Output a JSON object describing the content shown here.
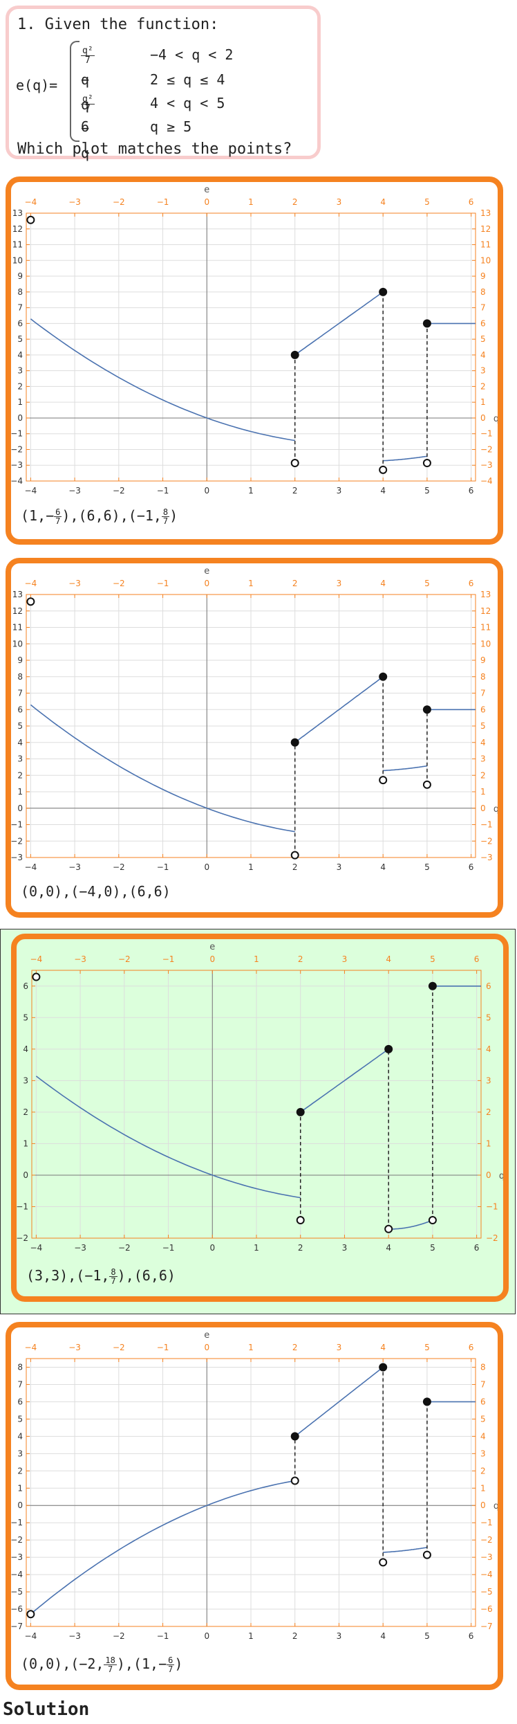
{
  "question": {
    "number_title": "1. Given the function:",
    "function_name": "e(q)=",
    "cases": [
      {
        "expr_num": "q²",
        "expr_den": "7",
        "expr_tail": " − q",
        "condition": "−4 < q < 2"
      },
      {
        "expr": "q",
        "condition": "2 ≤ q ≤ 4"
      },
      {
        "expr_num": "q²",
        "expr_den": "7",
        "expr_tail": " − q",
        "condition": "4 < q < 5"
      },
      {
        "expr": "6",
        "condition": "q ≥ 5"
      }
    ],
    "prompt": "Which plot matches the points?"
  },
  "colors": {
    "frame_orange": "#f58220",
    "question_border": "#f8cccc",
    "curve_blue": "#4a72b0",
    "correct_background": "#dcffdc"
  },
  "options": [
    {
      "points": [
        {
          "text": "(1,−"
        },
        {
          "num": "6",
          "den": "7"
        },
        {
          "text": "),(6,6),(−1,"
        },
        {
          "num": "8",
          "den": "7"
        },
        {
          "text": ")"
        }
      ],
      "chart_data": {
        "type": "line",
        "xlabel": "q",
        "ylabel": "e",
        "xlim": [
          -4.1,
          6.1
        ],
        "ylim": [
          -4,
          13
        ],
        "x_ticks": [
          -4,
          -3,
          -2,
          -1,
          0,
          1,
          2,
          3,
          4,
          5,
          6
        ],
        "y_ticks": [
          -4,
          -3,
          -2,
          -1,
          0,
          1,
          2,
          3,
          4,
          5,
          6,
          7,
          8,
          9,
          10,
          11,
          12,
          13
        ],
        "grid": true,
        "segments": [
          {
            "kind": "quadratic",
            "from": -4,
            "to": 2,
            "a": 0.1429,
            "b": -1,
            "c": 0
          },
          {
            "kind": "linear",
            "from": 2,
            "to": 4,
            "y0": 4,
            "y1": 8
          },
          {
            "kind": "quadratic",
            "from": 4,
            "to": 5,
            "a": 0.1429,
            "b": -1,
            "c": -1
          },
          {
            "kind": "linear",
            "from": 5,
            "to": 6.1,
            "y0": 6,
            "y1": 6
          }
        ],
        "open_points": [
          [
            -4,
            12.57
          ],
          [
            2,
            -2.86
          ],
          [
            4,
            -3.29
          ],
          [
            5,
            -2.86
          ]
        ],
        "closed_points": [
          [
            2,
            4
          ],
          [
            4,
            8
          ],
          [
            5,
            6
          ]
        ],
        "dashed_jumps": [
          [
            2,
            -2.86,
            4
          ],
          [
            4,
            -3.29,
            8
          ],
          [
            5,
            -2.86,
            6
          ]
        ]
      }
    },
    {
      "points": [
        {
          "text": "(0,0),(−4,0),(6,6)"
        }
      ],
      "chart_data": {
        "type": "line",
        "xlabel": "q",
        "ylabel": "e",
        "xlim": [
          -4.1,
          6.1
        ],
        "ylim": [
          -3,
          13
        ],
        "x_ticks": [
          -4,
          -3,
          -2,
          -1,
          0,
          1,
          2,
          3,
          4,
          5,
          6
        ],
        "y_ticks": [
          -3,
          -2,
          -1,
          0,
          1,
          2,
          3,
          4,
          5,
          6,
          7,
          8,
          9,
          10,
          11,
          12,
          13
        ],
        "grid": true,
        "segments": [
          {
            "kind": "quadratic",
            "from": -4,
            "to": 2,
            "a": 0.1429,
            "b": -1,
            "c": 0
          },
          {
            "kind": "linear",
            "from": 2,
            "to": 4,
            "y0": 4,
            "y1": 8
          },
          {
            "kind": "quadratic",
            "from": 4,
            "to": 5,
            "a": 0.1429,
            "b": -1,
            "c": 4
          },
          {
            "kind": "linear",
            "from": 5,
            "to": 6.1,
            "y0": 6,
            "y1": 6
          }
        ],
        "open_points": [
          [
            -4,
            12.57
          ],
          [
            2,
            -2.86
          ],
          [
            4,
            1.71
          ],
          [
            5,
            1.43
          ]
        ],
        "closed_points": [
          [
            2,
            4
          ],
          [
            4,
            8
          ],
          [
            5,
            6
          ]
        ],
        "dashed_jumps": [
          [
            2,
            -2.86,
            4
          ],
          [
            4,
            1.71,
            8
          ],
          [
            5,
            1.43,
            6
          ]
        ]
      }
    },
    {
      "correct": true,
      "points": [
        {
          "text": "(3,3),(−1,"
        },
        {
          "num": "8",
          "den": "7"
        },
        {
          "text": "),(6,6)"
        }
      ],
      "chart_data": {
        "type": "line",
        "xlabel": "q",
        "ylabel": "e",
        "xlim": [
          -4.1,
          6.1
        ],
        "ylim": [
          -2,
          6.5
        ],
        "x_ticks": [
          -4,
          -3,
          -2,
          -1,
          0,
          1,
          2,
          3,
          4,
          5,
          6
        ],
        "y_ticks": [
          -2,
          -1,
          0,
          1,
          2,
          3,
          4,
          5,
          6
        ],
        "grid": true,
        "segments": [
          {
            "kind": "quadratic",
            "from": -4,
            "to": 2,
            "a": 0.0714,
            "b": -0.5,
            "c": 0
          },
          {
            "kind": "linear",
            "from": 2,
            "to": 4,
            "y0": 2,
            "y1": 4
          },
          {
            "kind": "quadratic",
            "from": 4,
            "to": 5,
            "a": 0.2857,
            "b": -2.2857,
            "c": 2.8571
          },
          {
            "kind": "linear",
            "from": 5,
            "to": 6.1,
            "y0": 6,
            "y1": 6
          }
        ],
        "open_points": [
          [
            -4,
            6.29
          ],
          [
            2,
            -1.43
          ],
          [
            4,
            -1.71
          ],
          [
            5,
            -1.43
          ]
        ],
        "closed_points": [
          [
            2,
            2
          ],
          [
            4,
            4
          ],
          [
            5,
            6
          ]
        ],
        "dashed_jumps": [
          [
            2,
            -1.43,
            2
          ],
          [
            4,
            -1.71,
            4
          ],
          [
            5,
            -1.43,
            6
          ]
        ]
      }
    },
    {
      "points": [
        {
          "text": "(0,0),(−2,"
        },
        {
          "num": "18",
          "den": "7"
        },
        {
          "text": "),(1,−"
        },
        {
          "num": "6",
          "den": "7"
        },
        {
          "text": ")"
        }
      ],
      "chart_data": {
        "type": "line",
        "xlabel": "q",
        "ylabel": "e",
        "xlim": [
          -4.1,
          6.1
        ],
        "ylim": [
          -7,
          8.5
        ],
        "x_ticks": [
          -4,
          -3,
          -2,
          -1,
          0,
          1,
          2,
          3,
          4,
          5,
          6
        ],
        "y_ticks": [
          -7,
          -6,
          -5,
          -4,
          -3,
          -2,
          -1,
          0,
          1,
          2,
          3,
          4,
          5,
          6,
          7,
          8
        ],
        "grid": true,
        "segments": [
          {
            "kind": "quadratic",
            "from": -4,
            "to": 2,
            "a": -0.1429,
            "b": 1,
            "c": 0
          },
          {
            "kind": "linear",
            "from": 2,
            "to": 4,
            "y0": 4,
            "y1": 8
          },
          {
            "kind": "quadratic",
            "from": 4,
            "to": 5,
            "a": 0.1429,
            "b": -1,
            "c": -1
          },
          {
            "kind": "linear",
            "from": 5,
            "to": 6.1,
            "y0": 6,
            "y1": 6
          }
        ],
        "open_points": [
          [
            -4,
            -6.29
          ],
          [
            2,
            1.43
          ],
          [
            4,
            -3.29
          ],
          [
            5,
            -2.86
          ]
        ],
        "closed_points": [
          [
            2,
            4
          ],
          [
            4,
            8
          ],
          [
            5,
            6
          ]
        ],
        "dashed_jumps": [
          [
            2,
            1.43,
            4
          ],
          [
            4,
            -3.29,
            8
          ],
          [
            5,
            -2.86,
            6
          ]
        ]
      }
    }
  ],
  "solution": {
    "heading": "Solution"
  }
}
